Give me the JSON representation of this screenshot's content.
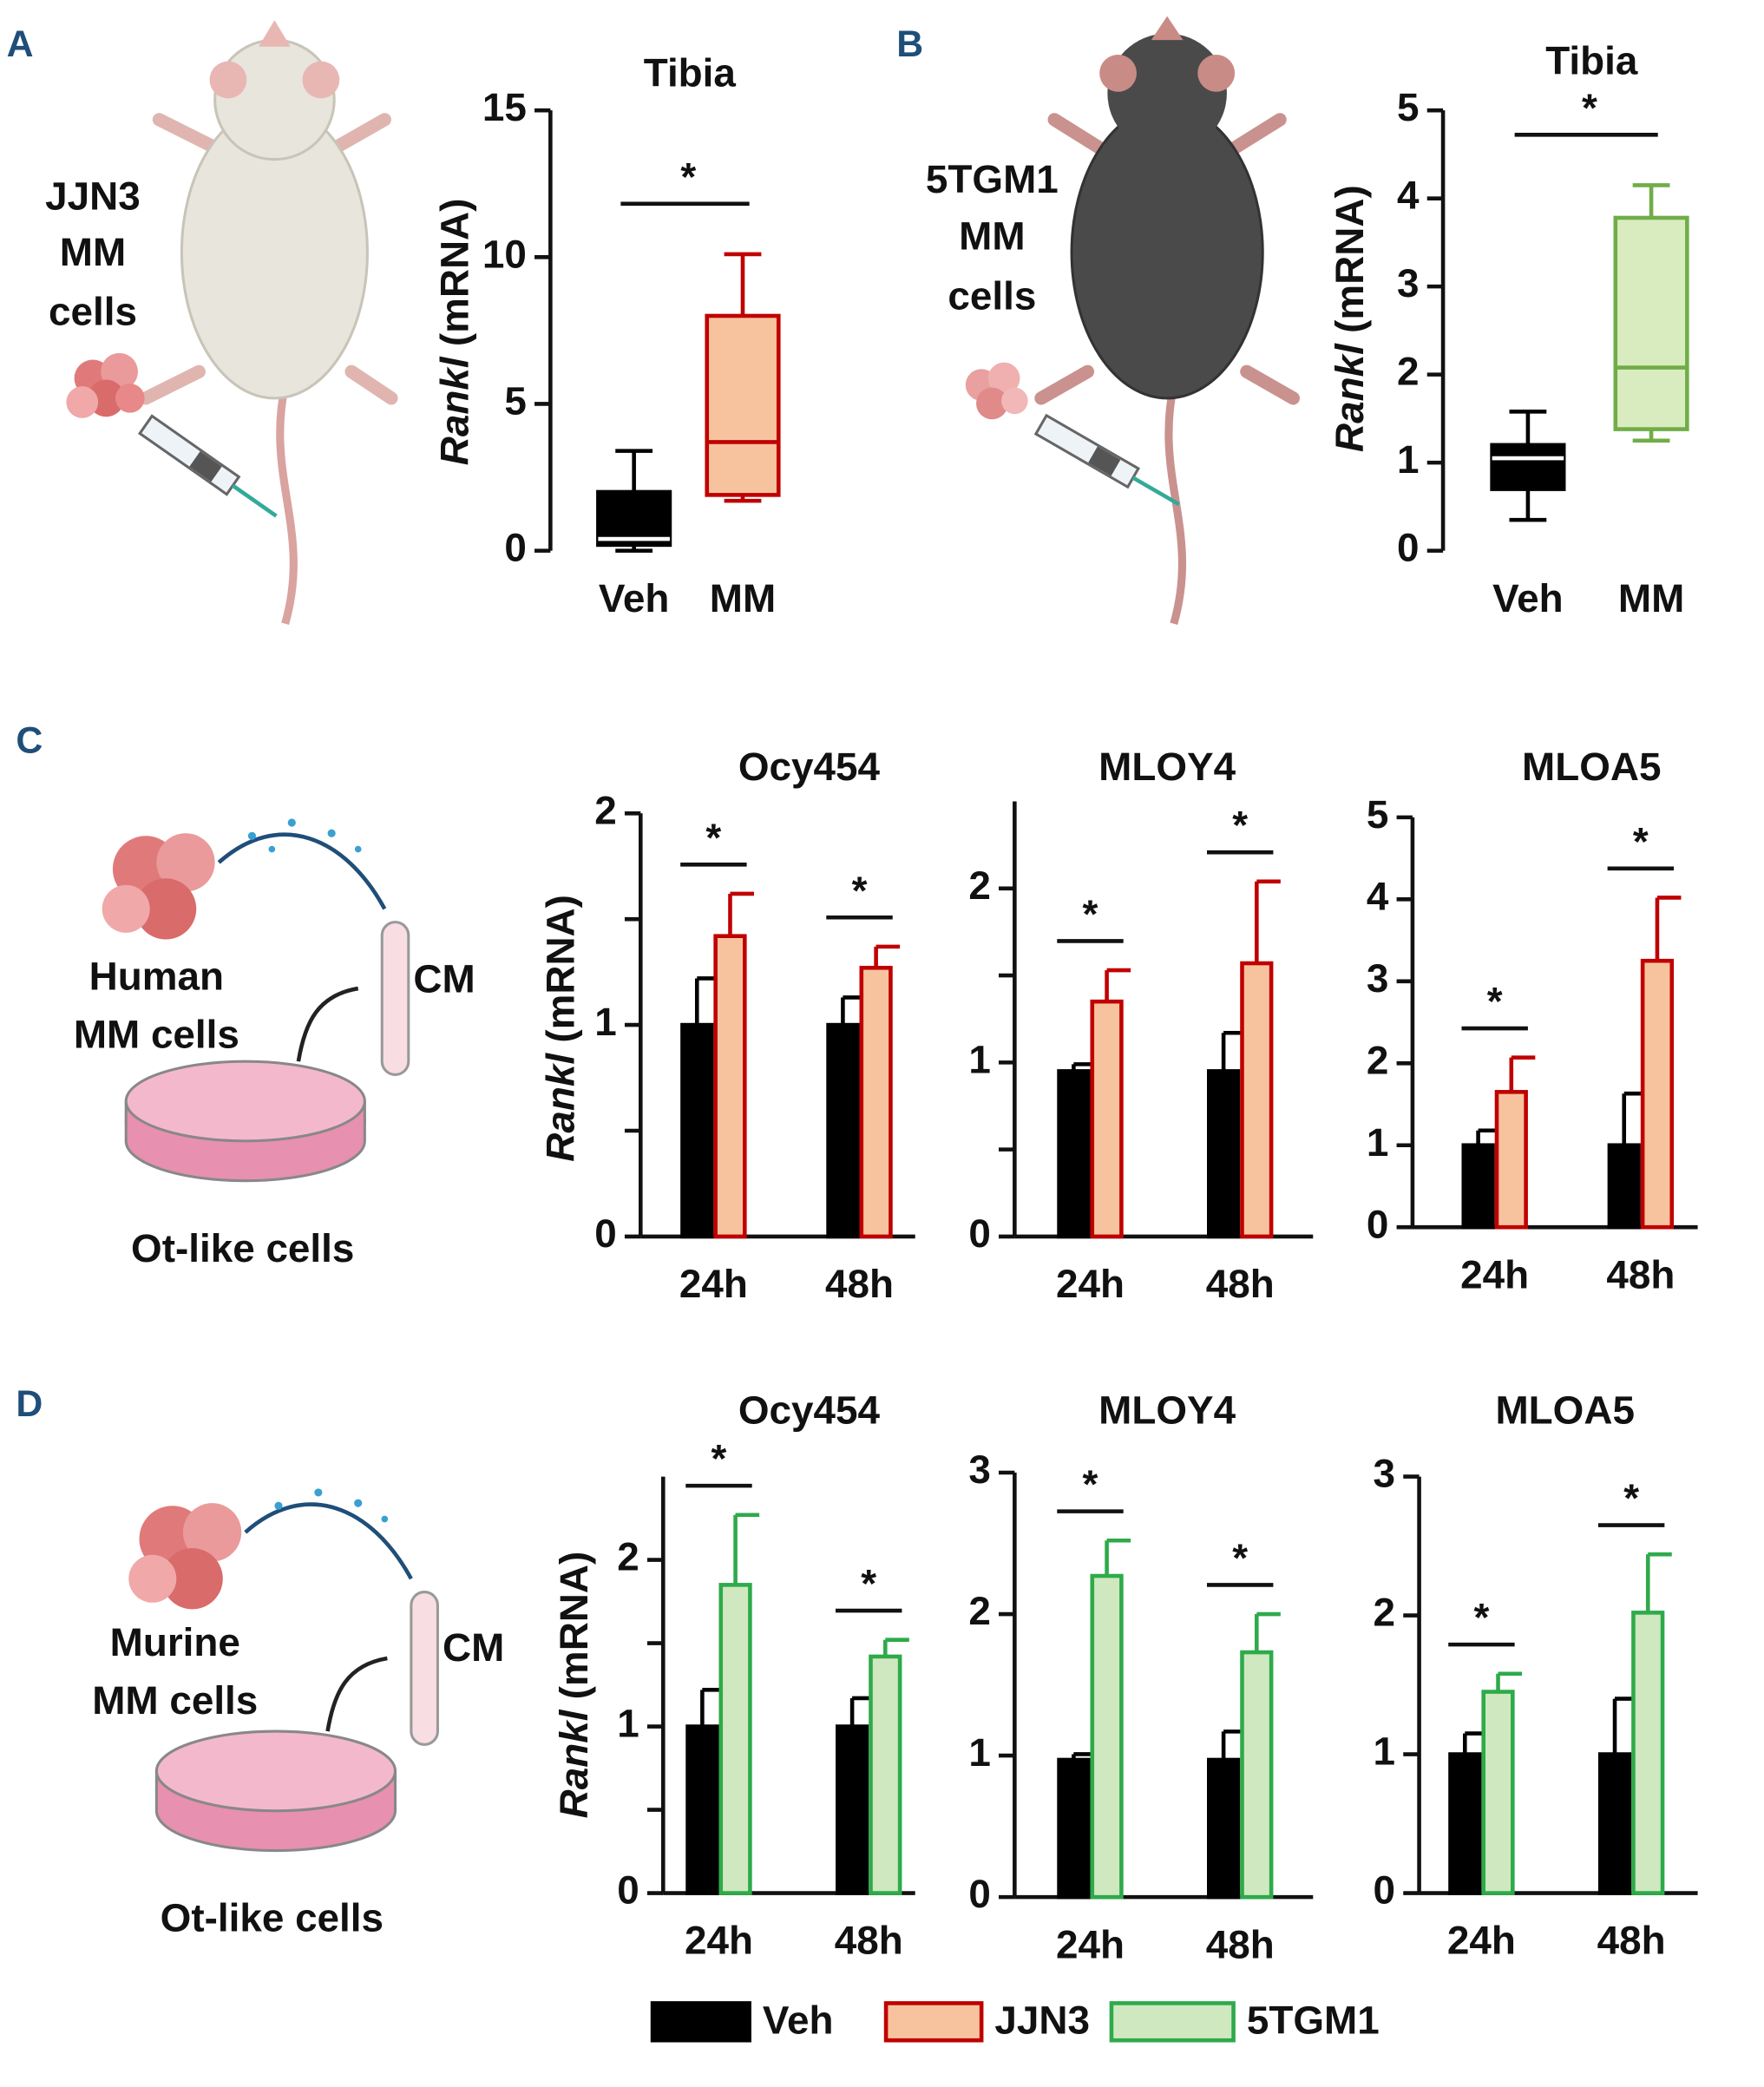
{
  "panel_labels": [
    "A",
    "B",
    "C",
    "D"
  ],
  "illustrations": {
    "A": [
      "JJN3",
      "MM",
      "cells"
    ],
    "B": [
      "5TGM1",
      "MM",
      "cells"
    ],
    "C": [
      "Human",
      "MM cells",
      "CM",
      "Ot-like cells"
    ],
    "D": [
      "Murine",
      "MM cells",
      "CM",
      "Ot-like cells"
    ]
  },
  "legend": [
    {
      "name": "Veh",
      "color": "#000000",
      "edge": "#000000"
    },
    {
      "name": "JJN3",
      "color": "#f7c39f",
      "edge": "#c00000"
    },
    {
      "name": "5TGM1",
      "color": "#cfe8c0",
      "edge": "#2eaa4a"
    }
  ],
  "chart_data": [
    {
      "type": "box",
      "title": "Tibia",
      "ylabel": [
        "Rankl",
        "(mRNA)"
      ],
      "categories": [
        "Veh",
        "MM"
      ],
      "ylim": [
        0,
        15
      ],
      "yticks": [
        0,
        5,
        10,
        15
      ],
      "significance": "*",
      "boxes": [
        {
          "min": 0,
          "q1": 0.2,
          "median": 0.4,
          "q3": 2.0,
          "max": 3.4,
          "color": "#000000",
          "edge": "#000000",
          "median_color": "#ffffff"
        },
        {
          "min": 1.7,
          "q1": 1.9,
          "median": 3.7,
          "q3": 8.0,
          "max": 10.1,
          "color": "#f7c39f",
          "edge": "#c00000",
          "median_color": "#c00000"
        }
      ]
    },
    {
      "type": "box",
      "title": "Tibia",
      "ylabel": [
        "Rankl",
        "(mRNA)"
      ],
      "categories": [
        "Veh",
        "MM"
      ],
      "ylim": [
        0,
        5
      ],
      "yticks": [
        0,
        1,
        2,
        3,
        4,
        5
      ],
      "significance": "*",
      "boxes": [
        {
          "min": 0.35,
          "q1": 0.7,
          "median": 1.05,
          "q3": 1.2,
          "max": 1.58,
          "color": "#000000",
          "edge": "#000000",
          "median_color": "#ffffff"
        },
        {
          "min": 1.25,
          "q1": 1.38,
          "median": 2.08,
          "q3": 3.78,
          "max": 4.15,
          "color": "#d9ecc0",
          "edge": "#70ad47",
          "median_color": "#70ad47"
        }
      ]
    },
    {
      "type": "bar",
      "title": "Ocy454",
      "ylabel": [
        "Rankl",
        "(mRNA)"
      ],
      "categories": [
        "24h",
        "48h"
      ],
      "ylim": [
        0,
        2
      ],
      "yticks": [
        0,
        1,
        2
      ],
      "minor_yticks": [
        0.5,
        1.5
      ],
      "significance": [
        "*",
        "*"
      ],
      "series": [
        {
          "name": "Veh",
          "color": "#000000",
          "edge": "#000000",
          "values": [
            1.0,
            1.0
          ],
          "errors": [
            0.22,
            0.13
          ]
        },
        {
          "name": "JJN3",
          "color": "#f7c39f",
          "edge": "#c00000",
          "values": [
            1.42,
            1.27
          ],
          "errors": [
            0.2,
            0.1
          ]
        }
      ]
    },
    {
      "type": "bar",
      "title": "MLOY4",
      "categories": [
        "24h",
        "48h"
      ],
      "ylim": [
        0,
        2.5
      ],
      "yticks": [
        0,
        1,
        2
      ],
      "minor_yticks": [
        0.5,
        1.5
      ],
      "significance": [
        "*",
        "*"
      ],
      "series": [
        {
          "name": "Veh",
          "color": "#000000",
          "edge": "#000000",
          "values": [
            0.95,
            0.95
          ],
          "errors": [
            0.04,
            0.22
          ]
        },
        {
          "name": "JJN3",
          "color": "#f7c39f",
          "edge": "#c00000",
          "values": [
            1.35,
            1.57
          ],
          "errors": [
            0.18,
            0.47
          ]
        }
      ]
    },
    {
      "type": "bar",
      "title": "MLOA5",
      "categories": [
        "24h",
        "48h"
      ],
      "ylim": [
        0,
        5
      ],
      "yticks": [
        0,
        1,
        2,
        3,
        4,
        5
      ],
      "significance": [
        "*",
        "*"
      ],
      "series": [
        {
          "name": "Veh",
          "color": "#000000",
          "edge": "#000000",
          "values": [
            1.0,
            1.0
          ],
          "errors": [
            0.18,
            0.63
          ]
        },
        {
          "name": "JJN3",
          "color": "#f7c39f",
          "edge": "#c00000",
          "values": [
            1.65,
            3.25
          ],
          "errors": [
            0.42,
            0.77
          ]
        }
      ]
    },
    {
      "type": "bar",
      "title": "Ocy454",
      "ylabel": [
        "Rankl",
        "(mRNA)"
      ],
      "categories": [
        "24h",
        "48h"
      ],
      "ylim": [
        0,
        2.5
      ],
      "yticks": [
        0,
        1,
        2
      ],
      "minor_yticks": [
        0.5,
        1.5
      ],
      "significance": [
        "*",
        "*"
      ],
      "series": [
        {
          "name": "Veh",
          "color": "#000000",
          "edge": "#000000",
          "values": [
            1.0,
            1.0
          ],
          "errors": [
            0.22,
            0.17
          ]
        },
        {
          "name": "5TGM1",
          "color": "#cfe8c0",
          "edge": "#2eaa4a",
          "values": [
            1.85,
            1.42
          ],
          "errors": [
            0.42,
            0.1
          ]
        }
      ]
    },
    {
      "type": "bar",
      "title": "MLOY4",
      "categories": [
        "24h",
        "48h"
      ],
      "ylim": [
        0,
        3
      ],
      "yticks": [
        0,
        1,
        2,
        3
      ],
      "significance": [
        "*",
        "*"
      ],
      "series": [
        {
          "name": "Veh",
          "color": "#000000",
          "edge": "#000000",
          "values": [
            0.97,
            0.97
          ],
          "errors": [
            0.04,
            0.2
          ]
        },
        {
          "name": "5TGM1",
          "color": "#cfe8c0",
          "edge": "#2eaa4a",
          "values": [
            2.27,
            1.73
          ],
          "errors": [
            0.25,
            0.27
          ]
        }
      ]
    },
    {
      "type": "bar",
      "title": "MLOA5",
      "categories": [
        "24h",
        "48h"
      ],
      "ylim": [
        0,
        3
      ],
      "yticks": [
        0,
        1,
        2,
        3
      ],
      "significance": [
        "*",
        "*"
      ],
      "series": [
        {
          "name": "Veh",
          "color": "#000000",
          "edge": "#000000",
          "values": [
            1.0,
            1.0
          ],
          "errors": [
            0.15,
            0.4
          ]
        },
        {
          "name": "5TGM1",
          "color": "#cfe8c0",
          "edge": "#2eaa4a",
          "values": [
            1.45,
            2.02
          ],
          "errors": [
            0.13,
            0.42
          ]
        }
      ]
    }
  ]
}
